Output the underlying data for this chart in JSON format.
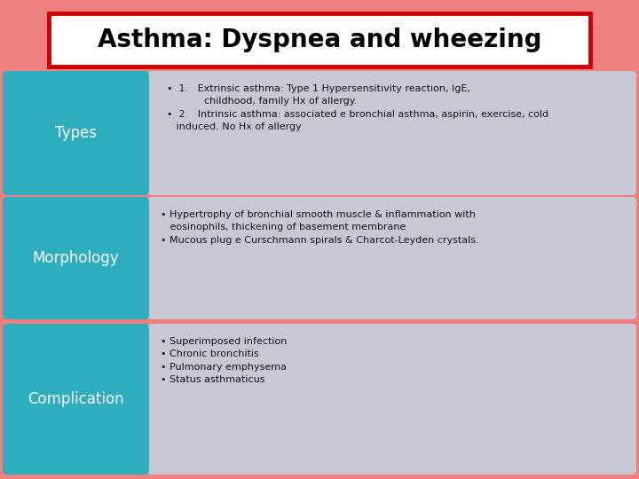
{
  "title": "Asthma: Dyspnea and wheezing",
  "background_color": "#F08080",
  "title_box_color": "#FFFFFF",
  "title_border_color": "#CC0000",
  "title_text_color": "#000000",
  "teal_color": "#2EADBF",
  "content_box_color": "#C8C8D4",
  "rows": [
    {
      "label": "Types",
      "content": "  •  1.   Extrinsic asthma: Type 1 Hypersensitivity reaction, IgE,\n              childhood, family Hx of allergy.\n  •  2.   Intrinsic asthma: associated e bronchial asthma, aspirin, exercise, cold\n     induced. No Hx of allergy"
    },
    {
      "label": "Morphology",
      "content": "• Hypertrophy of bronchial smooth muscle & inflammation with\n   eosinophils, thickening of basement membrane\n• Mucous plug e Curschmann spirals & Charcot-Leyden crystals."
    },
    {
      "label": "Complication",
      "content": "• Superimposed infection\n• Chronic bronchitis\n• Pulmonary emphysema\n• Status asthmaticus"
    }
  ]
}
